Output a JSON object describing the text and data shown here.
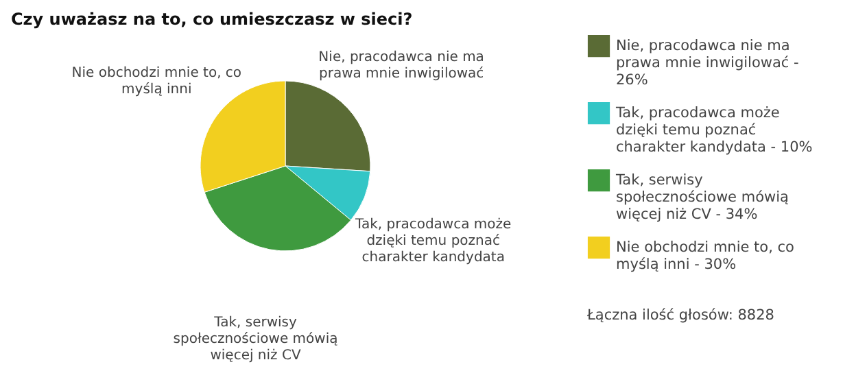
{
  "chart_data": {
    "type": "pie",
    "title": "Czy uważasz na to, co umieszczasz w sieci?",
    "categories": [
      "Nie, pracodawca nie ma prawa mnie inwigilować - 26%",
      "Tak, pracodawca może dzięki temu poznać charakter kandydata - 10%",
      "Tak, serwisy społecznościowe mówią więcej niż CV - 34%",
      "Nie obchodzi mnie to, co myślą inni - 30%"
    ],
    "values": [
      26,
      10,
      34,
      30
    ],
    "colors": [
      "#5a6b35",
      "#33c6c6",
      "#3f9a3f",
      "#f2cf1f"
    ],
    "legend": "right",
    "annotations": [
      "Nie, pracodawca nie ma prawa mnie inwigilować",
      "Tak, pracodawca może dzięki temu poznać charakter kandydata",
      "Tak, serwisy społecznościowe mówią więcej niż CV",
      "Nie obchodzi mnie to, co myślą inni",
      "Łączna ilość głosów: 8828"
    ]
  }
}
